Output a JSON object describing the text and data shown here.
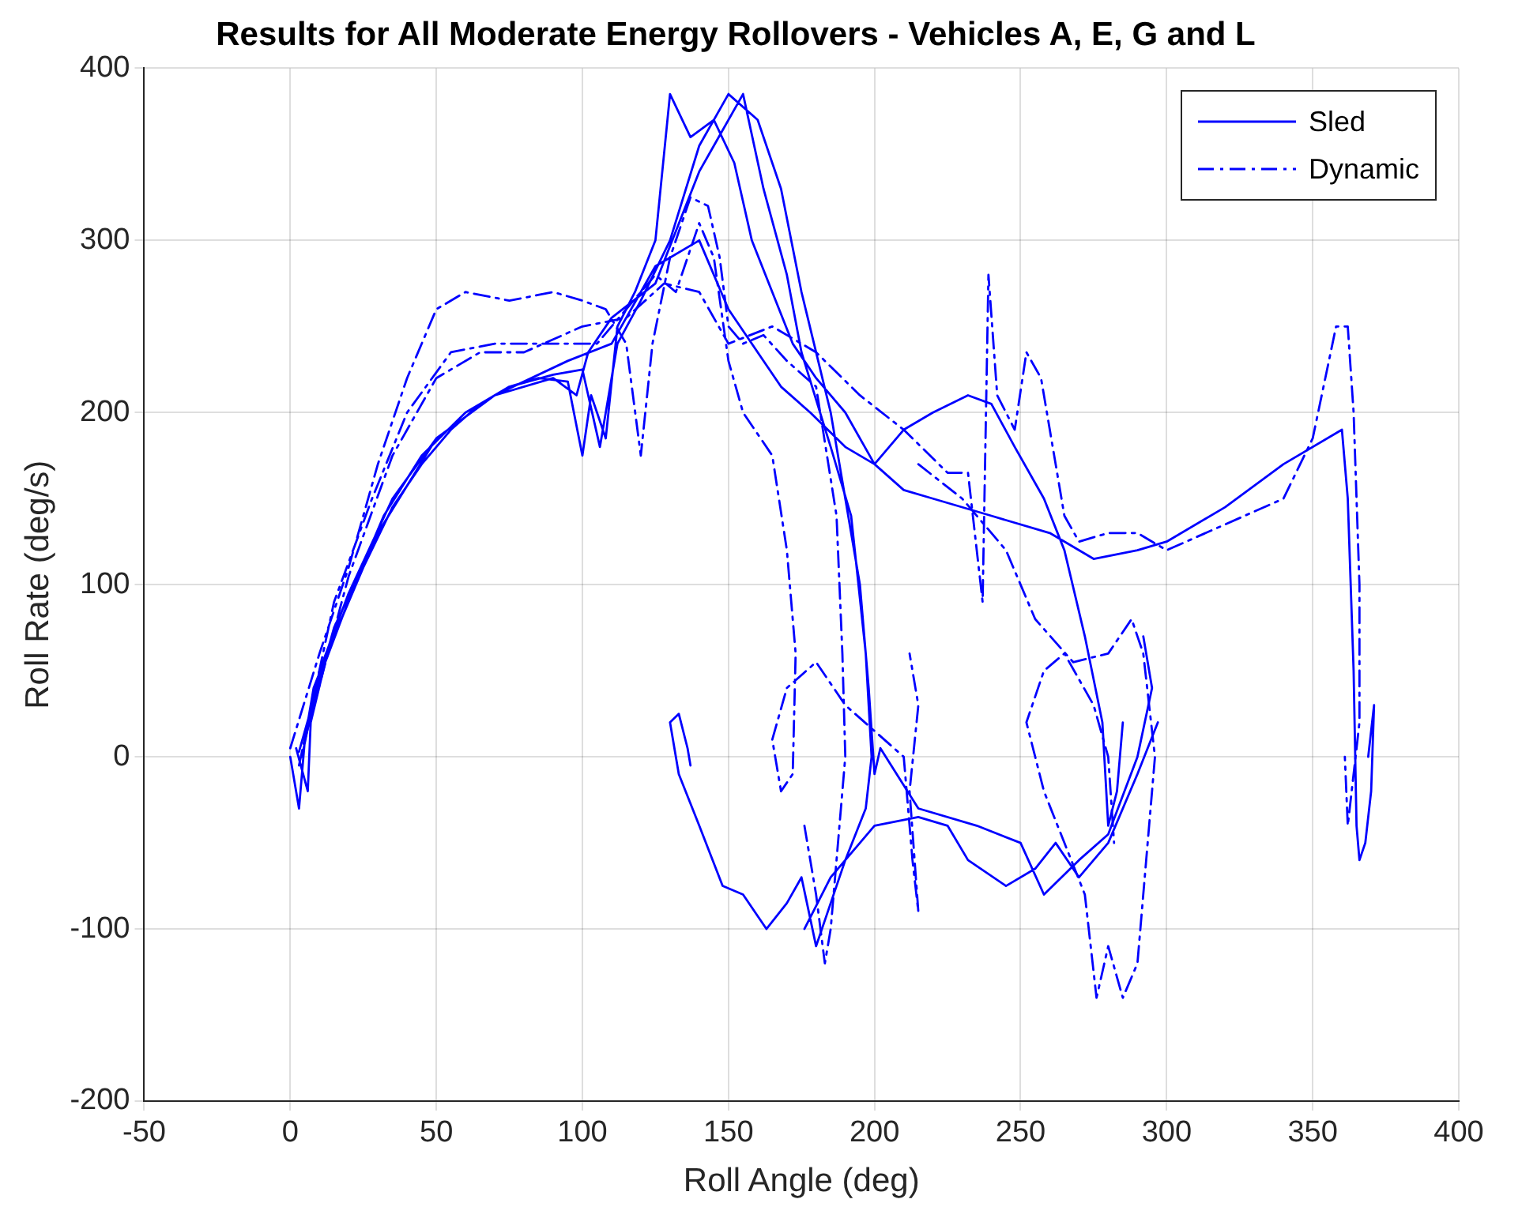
{
  "chart_data": {
    "type": "line",
    "title": "Results for All Moderate Energy Rollovers - Vehicles A, E, G and L",
    "xlabel": "Roll Angle (deg)",
    "ylabel": "Roll Rate (deg/s)",
    "xlim": [
      -50,
      400
    ],
    "xticks": [
      -50,
      0,
      50,
      100,
      150,
      200,
      250,
      300,
      350,
      400
    ],
    "ylim": [
      -200,
      400
    ],
    "yticks": [
      -200,
      -100,
      0,
      100,
      200,
      300,
      400
    ],
    "grid": true,
    "legend": "top right",
    "marker": "none",
    "series": [
      {
        "name": "Sled",
        "color": "#0000ff",
        "line_style": "solid",
        "x": [
          0,
          3,
          5,
          8,
          15,
          25,
          35,
          45,
          55,
          65,
          75,
          85,
          95,
          100,
          103,
          108,
          112,
          118,
          125,
          130,
          137,
          145,
          152,
          158,
          165,
          172,
          180,
          190,
          200,
          210,
          220,
          240,
          260,
          275,
          290,
          300,
          320,
          340,
          360,
          362,
          364,
          365,
          366,
          368,
          370,
          371,
          369,
          null,
          2,
          6,
          7,
          12,
          22,
          32,
          45,
          60,
          75,
          90,
          100,
          106,
          112,
          120,
          130,
          140,
          150,
          160,
          168,
          175,
          185,
          195,
          198,
          200,
          202,
          215,
          235,
          250,
          258,
          270,
          280,
          290,
          295,
          292,
          null,
          4,
          10,
          20,
          35,
          50,
          70,
          90,
          98,
          102,
          110,
          125,
          140,
          145,
          155,
          162,
          170,
          175,
          185,
          192,
          197,
          199,
          197,
          190,
          180,
          175,
          170,
          163,
          155,
          148,
          140,
          133,
          130,
          133,
          136,
          137,
          null,
          3,
          15,
          30,
          50,
          70,
          95,
          110,
          125,
          140,
          150,
          160,
          168,
          178,
          190,
          200,
          210,
          220,
          232,
          240,
          248,
          258,
          265,
          272,
          278,
          280,
          283,
          285,
          null,
          176,
          185,
          200,
          215,
          225,
          232,
          245,
          255,
          262,
          270,
          280,
          290,
          297
        ],
        "values": [
          0,
          -30,
          10,
          40,
          70,
          110,
          145,
          170,
          190,
          205,
          215,
          220,
          218,
          175,
          210,
          185,
          250,
          270,
          300,
          385,
          360,
          370,
          345,
          300,
          270,
          240,
          220,
          200,
          170,
          155,
          150,
          140,
          130,
          115,
          120,
          125,
          145,
          170,
          190,
          150,
          50,
          -40,
          -60,
          -50,
          -20,
          30,
          0,
          null,
          5,
          -20,
          20,
          55,
          100,
          140,
          175,
          200,
          215,
          222,
          225,
          180,
          240,
          265,
          300,
          355,
          385,
          370,
          330,
          270,
          200,
          100,
          40,
          -10,
          5,
          -30,
          -40,
          -50,
          -80,
          -60,
          -45,
          0,
          40,
          70,
          null,
          0,
          50,
          95,
          150,
          185,
          210,
          220,
          210,
          235,
          255,
          275,
          340,
          355,
          385,
          330,
          280,
          235,
          180,
          140,
          60,
          0,
          -30,
          -60,
          -110,
          -70,
          -85,
          -100,
          -80,
          -75,
          -40,
          -10,
          20,
          25,
          5,
          -5,
          null,
          3,
          75,
          130,
          185,
          210,
          230,
          240,
          285,
          300,
          260,
          235,
          215,
          200,
          180,
          170,
          190,
          200,
          210,
          205,
          180,
          150,
          120,
          70,
          20,
          -40,
          -20,
          20,
          null,
          -100,
          -70,
          -40,
          -35,
          -40,
          -60,
          -75,
          -65,
          -50,
          -70,
          -50,
          -10,
          20
        ]
      },
      {
        "name": "Dynamic",
        "color": "#0000ff",
        "line_style": "dashed",
        "x": [
          0,
          10,
          20,
          30,
          40,
          50,
          60,
          75,
          90,
          100,
          108,
          115,
          120,
          124,
          130,
          137,
          143,
          147,
          150,
          155,
          162,
          170,
          180,
          187,
          189,
          190,
          188,
          185,
          183,
          180,
          176,
          null,
          3,
          15,
          28,
          40,
          55,
          70,
          90,
          105,
          115,
          125,
          132,
          140,
          145,
          150,
          155,
          165,
          170,
          173,
          172,
          168,
          165,
          170,
          180,
          190,
          200,
          210,
          213,
          215,
          212,
          215,
          212,
          null,
          5,
          20,
          35,
          50,
          65,
          80,
          100,
          115,
          128,
          140,
          150,
          165,
          180,
          195,
          210,
          225,
          232,
          237,
          239,
          242,
          248,
          252,
          257,
          260,
          265,
          270,
          280,
          290,
          300,
          320,
          340,
          350,
          358,
          362,
          364,
          366,
          366,
          362,
          361,
          null,
          215,
          230,
          245,
          255,
          268,
          280,
          288,
          292,
          296,
          293,
          290,
          285,
          280,
          276,
          272,
          265,
          258,
          252,
          258,
          265,
          275,
          280,
          282
        ],
        "values": [
          5,
          60,
          110,
          170,
          220,
          260,
          270,
          265,
          270,
          265,
          260,
          240,
          175,
          240,
          290,
          325,
          320,
          290,
          250,
          240,
          245,
          230,
          215,
          140,
          60,
          0,
          -40,
          -100,
          -120,
          -80,
          -40,
          null,
          -5,
          90,
          150,
          200,
          235,
          240,
          240,
          240,
          260,
          280,
          270,
          310,
          290,
          230,
          200,
          175,
          120,
          60,
          -10,
          -20,
          10,
          40,
          55,
          30,
          15,
          0,
          -60,
          -90,
          -20,
          30,
          60,
          null,
          10,
          105,
          175,
          220,
          235,
          235,
          250,
          255,
          275,
          270,
          240,
          250,
          235,
          210,
          190,
          165,
          165,
          90,
          280,
          210,
          190,
          235,
          220,
          190,
          140,
          125,
          130,
          130,
          120,
          135,
          150,
          185,
          250,
          250,
          200,
          100,
          20,
          -40,
          0,
          null,
          170,
          150,
          120,
          80,
          55,
          60,
          80,
          60,
          0,
          -60,
          -120,
          -140,
          -110,
          -140,
          -80,
          -50,
          -20,
          20,
          50,
          60,
          30,
          0,
          -50
        ]
      }
    ]
  }
}
